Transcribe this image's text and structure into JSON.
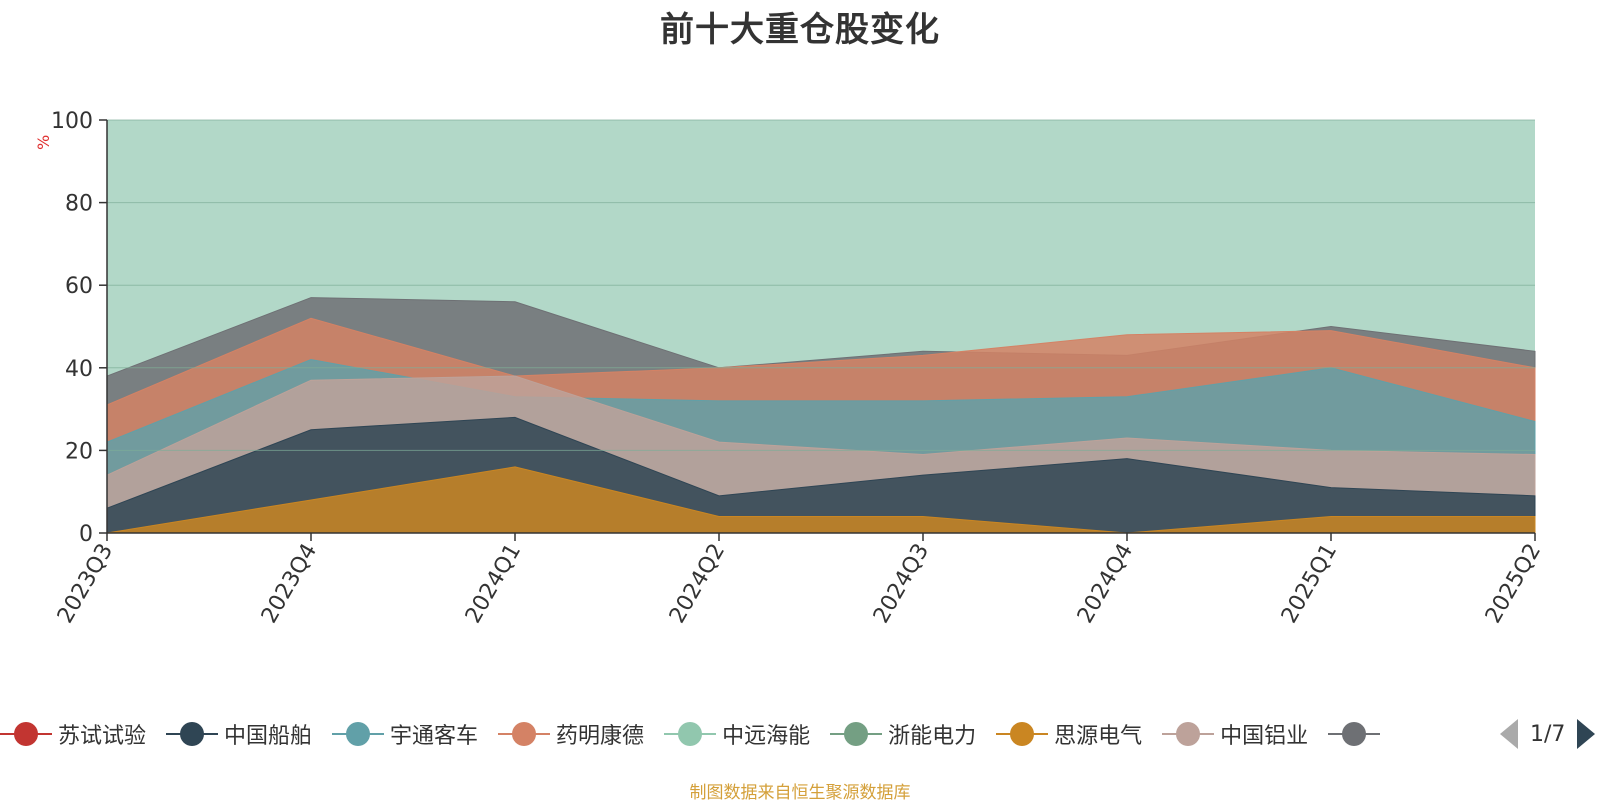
{
  "title": "前十大重仓股变化",
  "footer": "制图数据来自恒生聚源数据库",
  "pager": {
    "text": "1/7"
  },
  "colors": {
    "plot_bg": "#b2d8c8",
    "axis": "#333333",
    "grid": "#9fc5b3",
    "ylabel": "#e03030"
  },
  "legend": [
    {
      "name": "苏试试验",
      "color": "#c23531"
    },
    {
      "name": "中国船舶",
      "color": "#2f4554"
    },
    {
      "name": "宇通客车",
      "color": "#61a0a8"
    },
    {
      "name": "药明康德",
      "color": "#d48265"
    },
    {
      "name": "中远海能",
      "color": "#91c7ae"
    },
    {
      "name": "浙能电力",
      "color": "#749f83"
    },
    {
      "name": "思源电气",
      "color": "#ca8622"
    },
    {
      "name": "中国铝业",
      "color": "#bda29a"
    },
    {
      "name": "",
      "color": "#6e7074"
    }
  ],
  "chart_data": {
    "type": "area",
    "title": "前十大重仓股变化",
    "ylabel": "%",
    "ylim": [
      0,
      100
    ],
    "yticks": [
      0,
      20,
      40,
      60,
      80,
      100
    ],
    "categories": [
      "2023Q3",
      "2023Q4",
      "2024Q1",
      "2024Q2",
      "2024Q3",
      "2024Q4",
      "2025Q1",
      "2025Q2"
    ],
    "layers": [
      {
        "color": "#ca8622",
        "values": [
          0,
          8,
          16,
          4,
          4,
          0,
          4,
          4
        ]
      },
      {
        "color": "#2f4554",
        "values": [
          6,
          25,
          28,
          9,
          14,
          18,
          11,
          9
        ]
      },
      {
        "color": "#bda29a",
        "values": [
          14,
          37,
          38,
          22,
          19,
          23,
          20,
          19
        ]
      },
      {
        "color": "#61a0a8",
        "values": [
          22,
          42,
          33,
          32,
          32,
          33,
          40,
          27
        ]
      },
      {
        "color": "#d48265",
        "values": [
          31,
          52,
          38,
          40,
          43,
          48,
          49,
          40
        ]
      },
      {
        "color": "#6e7074",
        "values": [
          38,
          57,
          56,
          40,
          44,
          43,
          50,
          44
        ]
      }
    ]
  }
}
